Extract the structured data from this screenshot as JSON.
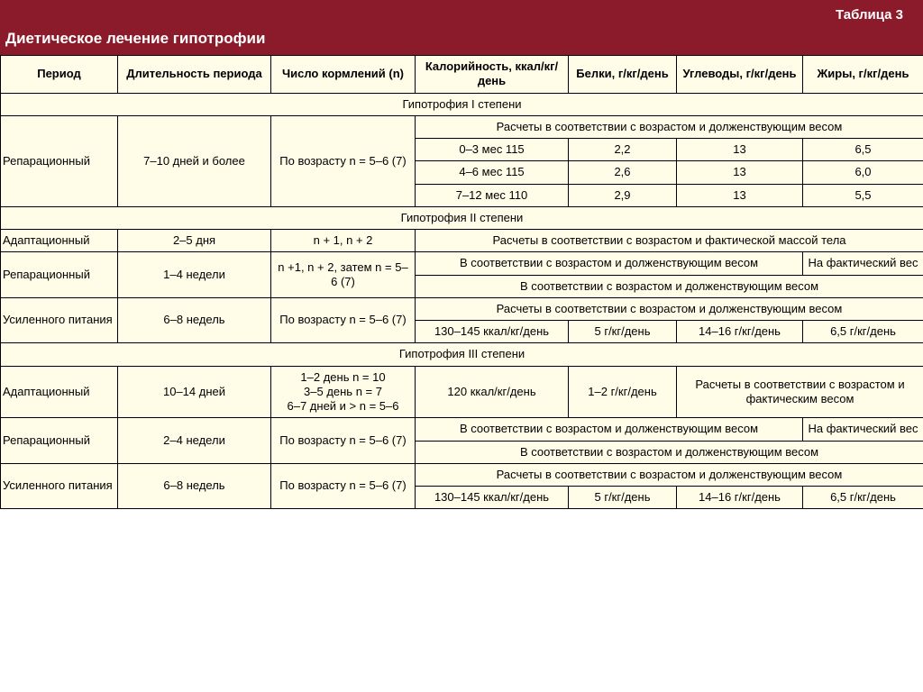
{
  "colors": {
    "header_bg": "#8b1a2b",
    "header_fg": "#ffffff",
    "cell_bg": "#fffce8",
    "border": "#000000"
  },
  "header": {
    "table_label": "Таблица 3",
    "title": "Диетическое лечение гипотрофии"
  },
  "columns": {
    "period": "Период",
    "duration": "Длительность периода",
    "feedings": "Число кормлений (n)",
    "calories": "Калорийность, ккал/кг/день",
    "protein": "Белки, г/кг/день",
    "carbs": "Углеводы, г/кг/день",
    "fat": "Жиры, г/кг/день"
  },
  "sections": {
    "s1": "Гипотрофия I степени",
    "s2": "Гипотрофия II степени",
    "s3": "Гипотрофия III степени"
  },
  "s1": {
    "period": "Репарационный",
    "duration": "7–10 дней и более",
    "feedings": "По возрасту n = 5–6 (7)",
    "note": "Расчеты в соответствии с возрастом и долженствующим весом",
    "rows": [
      {
        "cal": "0–3 мес 115",
        "prot": "2,2",
        "carb": "13",
        "fat": "6,5"
      },
      {
        "cal": "4–6 мес 115",
        "prot": "2,6",
        "carb": "13",
        "fat": "6,0"
      },
      {
        "cal": "7–12 мес 110",
        "prot": "2,9",
        "carb": "13",
        "fat": "5,5"
      }
    ]
  },
  "s2": {
    "r1": {
      "period": "Адаптационный",
      "duration": "2–5 дня",
      "feedings": "n + 1, n + 2",
      "note": "Расчеты в соответствии с возрастом и фактической массой тела"
    },
    "r2": {
      "period": "Репарационный",
      "duration": "1–4 недели",
      "feedings": "n +1, n + 2, затем n = 5–6 (7)",
      "line1_a": "В соответствии с возрастом и долженствующим весом",
      "line1_b": "На фактический вес",
      "line2": "В соответствии с возрастом и долженствующим весом"
    },
    "r3": {
      "period": "Усиленного питания",
      "duration": "6–8 недель",
      "feedings": "По возрасту n = 5–6 (7)",
      "note": "Расчеты в соответствии с возрастом и долженствующим весом",
      "cal": "130–145 ккал/кг/день",
      "prot": "5 г/кг/день",
      "carb": "14–16 г/кг/день",
      "fat": "6,5 г/кг/день"
    }
  },
  "s3": {
    "r1": {
      "period": "Адаптационный",
      "duration": "10–14 дней",
      "feedings": "1–2 день n = 10\n3–5 день n = 7\n6–7 дней и > n = 5–6",
      "cal": "120 ккал/кг/день",
      "prot": "1–2 г/кг/день",
      "note": "Расчеты в соответствии с возрастом и фактическим весом"
    },
    "r2": {
      "period": "Репарационный",
      "duration": "2–4 недели",
      "feedings": "По возрасту n = 5–6 (7)",
      "line1_a": "В соответствии с возрастом и долженствующим весом",
      "line1_b": "На фактический вес",
      "line2": "В соответствии с возрастом и долженствующим весом"
    },
    "r3": {
      "period": "Усиленного питания",
      "duration": "6–8 недель",
      "feedings": "По возрасту n = 5–6 (7)",
      "note": "Расчеты в соответствии с возрастом и долженствующим весом",
      "cal": "130–145 ккал/кг/день",
      "prot": "5 г/кг/день",
      "carb": "14–16 г/кг/день",
      "fat": "6,5 г/кг/день"
    }
  }
}
